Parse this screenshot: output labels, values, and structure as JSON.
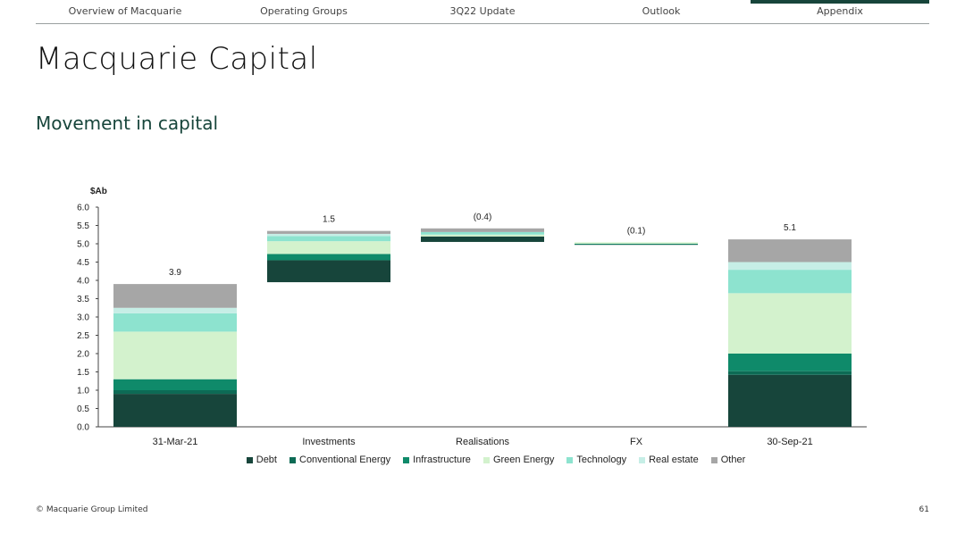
{
  "nav": {
    "items": [
      {
        "label": "Overview of Macquarie",
        "active": false
      },
      {
        "label": "Operating Groups",
        "active": false
      },
      {
        "label": "3Q22 Update",
        "active": false
      },
      {
        "label": "Outlook",
        "active": false
      },
      {
        "label": "Appendix",
        "active": true
      }
    ],
    "accent_color": "#17453b"
  },
  "page": {
    "title": "Macquarie Capital",
    "section_title": "Movement in capital"
  },
  "chart_data": {
    "type": "bar",
    "subtype": "stacked-waterfall",
    "ylabel": "$Ab",
    "ylim": [
      0,
      6
    ],
    "yticks": [
      "0.0",
      "0.5",
      "1.0",
      "1.5",
      "2.0",
      "2.5",
      "3.0",
      "3.5",
      "4.0",
      "4.5",
      "5.0",
      "5.5",
      "6.0"
    ],
    "categories": [
      "31-Mar-21",
      "Investments",
      "Realisations",
      "FX",
      "30-Sep-21"
    ],
    "totals_labels": [
      "3.9",
      "1.5",
      "(0.4)",
      "(0.1)",
      "5.1"
    ],
    "bar_base": [
      0,
      3.95,
      5.05,
      4.98,
      0
    ],
    "series": [
      {
        "name": "Debt",
        "color": "#17453b",
        "values": [
          0.9,
          0.6,
          0.15,
          0.01,
          1.42
        ]
      },
      {
        "name": "Conventional Energy",
        "color": "#0d6b55",
        "values": [
          0.1,
          0.0,
          0.0,
          0.0,
          0.1
        ]
      },
      {
        "name": "Infrastructure",
        "color": "#0f8a6a",
        "values": [
          0.3,
          0.17,
          0.0,
          0.01,
          0.48
        ]
      },
      {
        "name": "Green Energy",
        "color": "#d3f2cd",
        "values": [
          1.3,
          0.35,
          0.05,
          0.04,
          1.65
        ]
      },
      {
        "name": "Technology",
        "color": "#8de3cf",
        "values": [
          0.5,
          0.14,
          0.07,
          0.0,
          0.64
        ]
      },
      {
        "name": "Real estate",
        "color": "#c6eee6",
        "values": [
          0.15,
          0.06,
          0.0,
          0.0,
          0.21
        ]
      },
      {
        "name": "Other",
        "color": "#a6a6a6",
        "values": [
          0.65,
          0.08,
          0.1,
          0.0,
          0.62
        ]
      }
    ],
    "legend_position": "bottom",
    "grid": false
  },
  "footer": {
    "copyright": "© Macquarie Group Limited",
    "page_number": "61"
  }
}
